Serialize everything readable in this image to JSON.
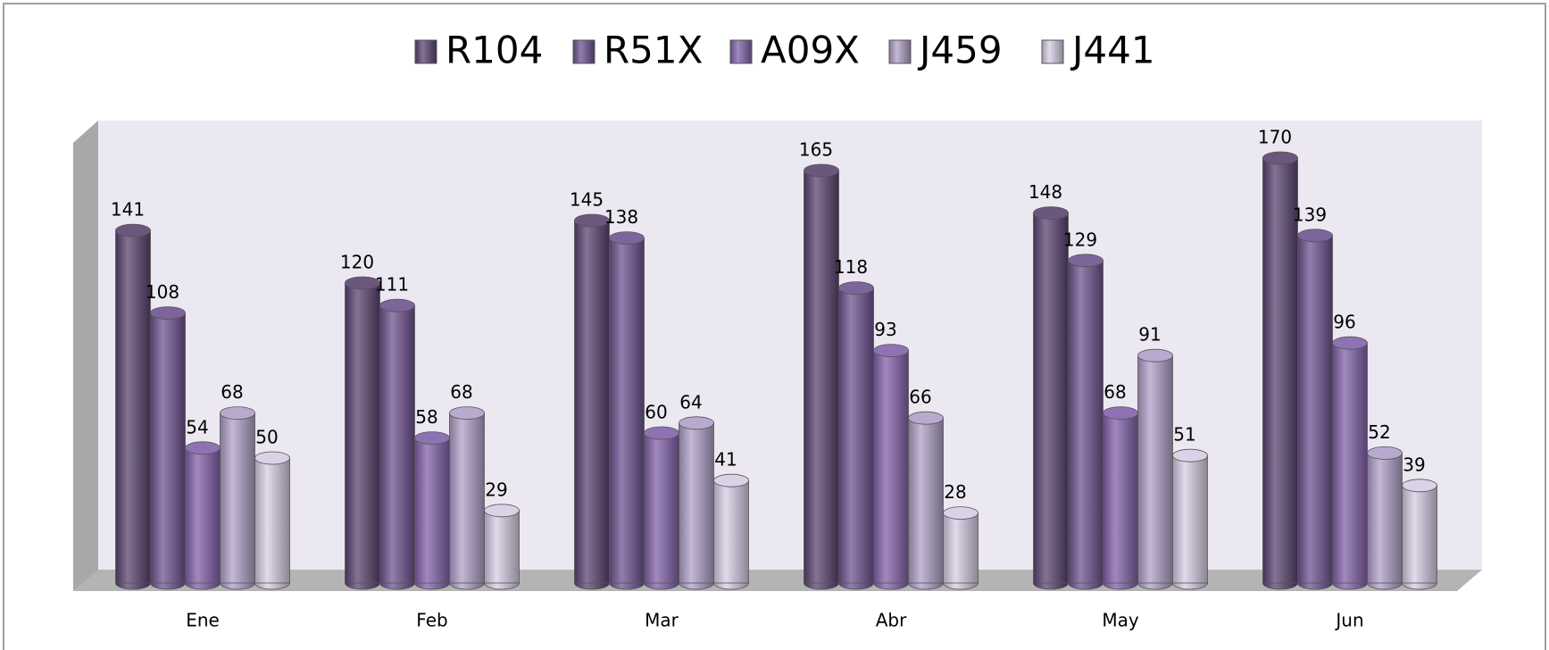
{
  "chart_data": {
    "type": "bar3d",
    "categories": [
      "Ene",
      "Feb",
      "Mar",
      "Abr",
      "May",
      "Jun"
    ],
    "series": [
      {
        "name": "R104",
        "color": "#5b4470",
        "values": [
          141,
          120,
          145,
          165,
          148,
          170
        ]
      },
      {
        "name": "R51X",
        "color": "#6f5390",
        "values": [
          108,
          111,
          138,
          118,
          129,
          139
        ]
      },
      {
        "name": "A09X",
        "color": "#8262ab",
        "values": [
          54,
          58,
          60,
          93,
          68,
          96
        ]
      },
      {
        "name": "J459",
        "color": "#b0a0c8",
        "values": [
          68,
          68,
          64,
          66,
          91,
          52
        ]
      },
      {
        "name": "J441",
        "color": "#d6cde4",
        "values": [
          50,
          29,
          41,
          28,
          51,
          39
        ]
      }
    ],
    "legend": "top"
  }
}
